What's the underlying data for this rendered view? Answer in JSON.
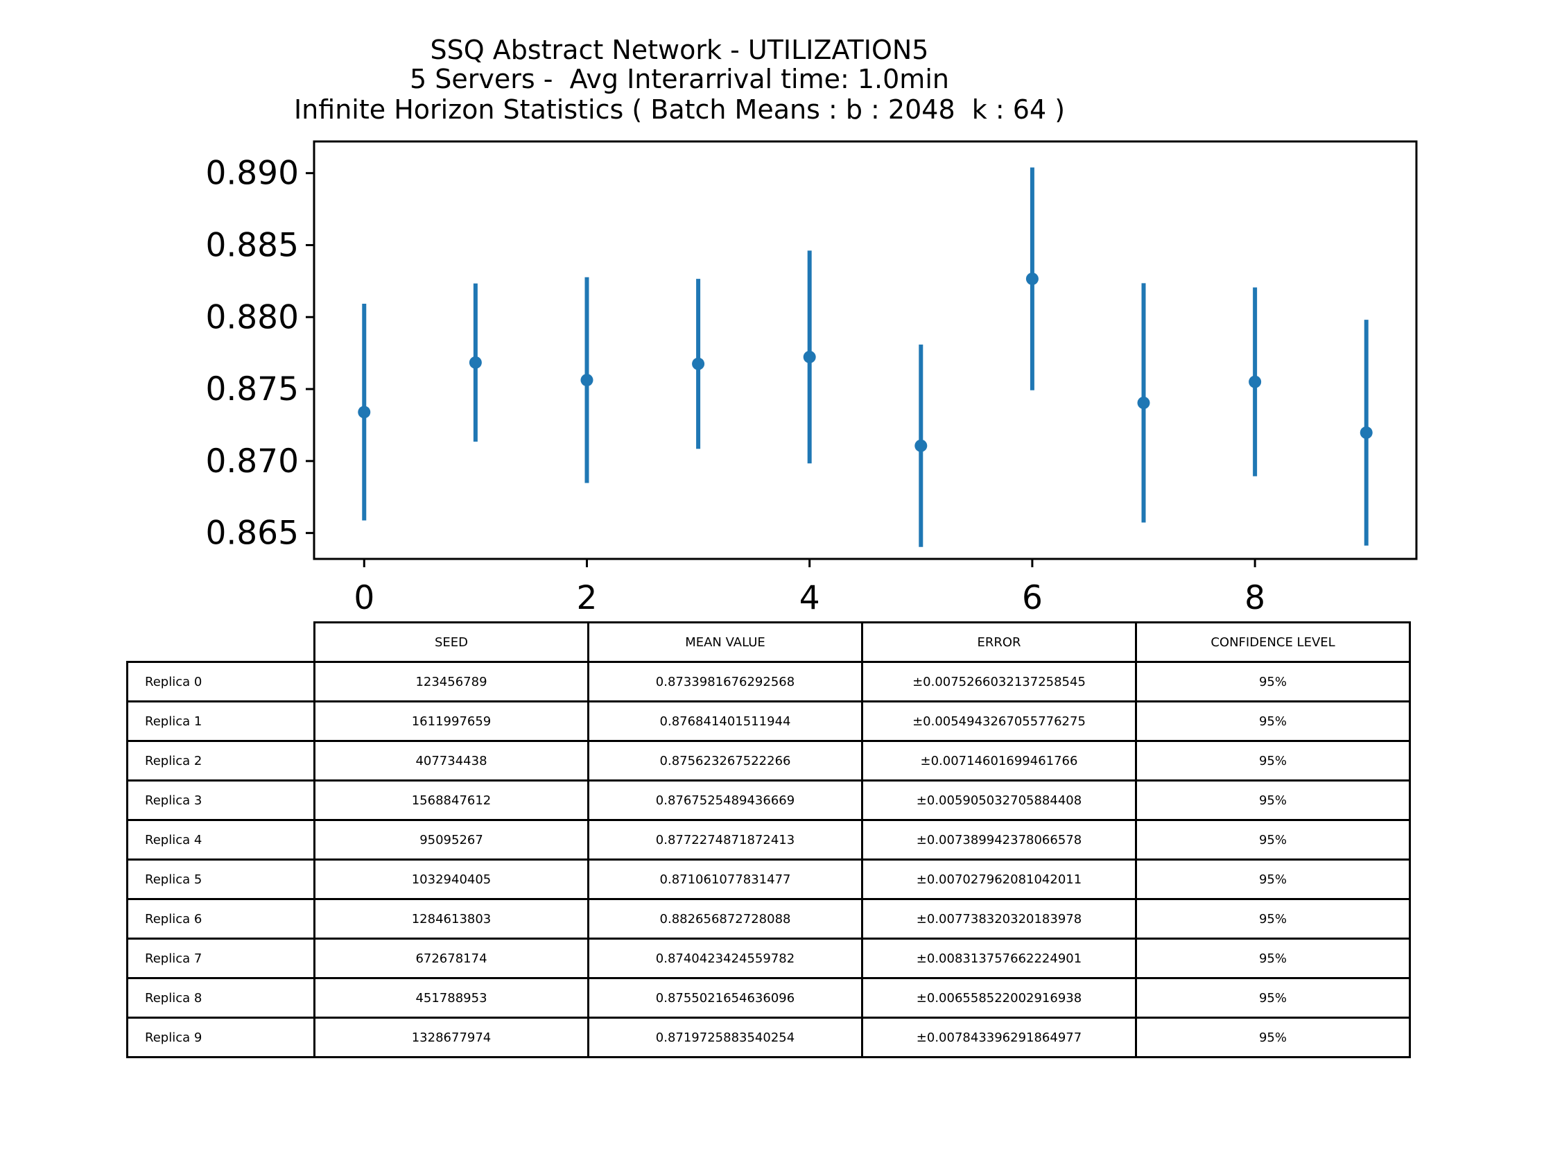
{
  "chart_data": {
    "type": "scatter",
    "title": "SSQ Abstract Network - UTILIZATION5\n5 Servers -  Avg Interarrival time: 1.0min\nInfinite Horizon Statistics ( Batch Means : b : 2048  k : 64 )",
    "title_lines": [
      "SSQ Abstract Network - UTILIZATION5",
      "5 Servers -  Avg Interarrival time: 1.0min",
      "Infinite Horizon Statistics ( Batch Means : b : 2048  k : 64 )"
    ],
    "xlabel": "",
    "ylabel": "",
    "x": [
      0,
      1,
      2,
      3,
      4,
      5,
      6,
      7,
      8,
      9
    ],
    "y": [
      0.8733981676292568,
      0.876841401511944,
      0.875623267522266,
      0.8767525489436669,
      0.8772274871872413,
      0.871061077831477,
      0.882656872728088,
      0.8740423424559782,
      0.8755021654636096,
      0.8719725883540254
    ],
    "error": [
      0.0075266032137258545,
      0.0054943267055776275,
      0.00714601699461766,
      0.005905032705884408,
      0.007389942378066578,
      0.007027962081042011,
      0.007738320320183978,
      0.008313757662224901,
      0.006558522002916938,
      0.007843396291864977
    ],
    "xlim": [
      -0.45,
      9.45
    ],
    "ylim": [
      0.8632,
      0.8922
    ],
    "xticks": [
      0,
      2,
      4,
      6,
      8
    ],
    "yticks": [
      0.865,
      0.87,
      0.875,
      0.88,
      0.885,
      0.89
    ],
    "ytick_labels": [
      "0.865",
      "0.870",
      "0.875",
      "0.880",
      "0.885",
      "0.890"
    ],
    "xtick_labels": [
      "0",
      "2",
      "4",
      "6",
      "8"
    ],
    "grid": false,
    "marker_color": "#1f77b4"
  },
  "table": {
    "headers": [
      "SEED",
      "MEAN VALUE",
      "ERROR",
      "CONFIDENCE LEVEL"
    ],
    "rows": [
      {
        "label": "Replica 0",
        "seed": "123456789",
        "mean": "0.8733981676292568",
        "error": "±0.0075266032137258545",
        "conf": "95%"
      },
      {
        "label": "Replica 1",
        "seed": "1611997659",
        "mean": "0.876841401511944",
        "error": "±0.0054943267055776275",
        "conf": "95%"
      },
      {
        "label": "Replica 2",
        "seed": "407734438",
        "mean": "0.875623267522266",
        "error": "±0.00714601699461766",
        "conf": "95%"
      },
      {
        "label": "Replica 3",
        "seed": "1568847612",
        "mean": "0.8767525489436669",
        "error": "±0.005905032705884408",
        "conf": "95%"
      },
      {
        "label": "Replica 4",
        "seed": "95095267",
        "mean": "0.8772274871872413",
        "error": "±0.007389942378066578",
        "conf": "95%"
      },
      {
        "label": "Replica 5",
        "seed": "1032940405",
        "mean": "0.871061077831477",
        "error": "±0.007027962081042011",
        "conf": "95%"
      },
      {
        "label": "Replica 6",
        "seed": "1284613803",
        "mean": "0.882656872728088",
        "error": "±0.007738320320183978",
        "conf": "95%"
      },
      {
        "label": "Replica 7",
        "seed": "672678174",
        "mean": "0.8740423424559782",
        "error": "±0.008313757662224901",
        "conf": "95%"
      },
      {
        "label": "Replica 8",
        "seed": "451788953",
        "mean": "0.8755021654636096",
        "error": "±0.006558522002916938",
        "conf": "95%"
      },
      {
        "label": "Replica 9",
        "seed": "1328677974",
        "mean": "0.8719725883540254",
        "error": "±0.007843396291864977",
        "conf": "95%"
      }
    ]
  }
}
